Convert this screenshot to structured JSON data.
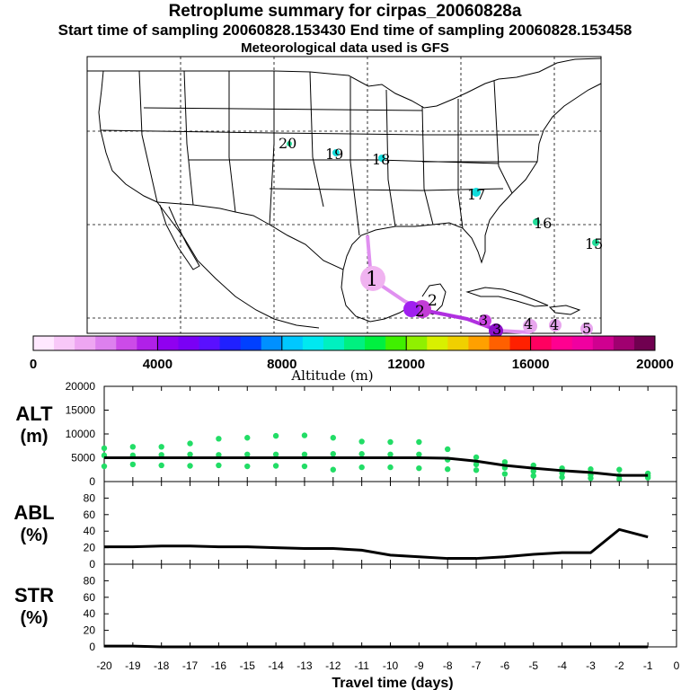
{
  "header": {
    "title": "Retroplume summary for cirpas_20060828a",
    "sampling_line": "Start time of sampling 20060828.153430     End time of sampling 20060828.153458",
    "met_line": "Meteorological data used is GFS"
  },
  "map": {
    "land_color": "#ffffff",
    "plume_points": [
      {
        "label": "1",
        "color": "#f0b3f0"
      },
      {
        "label": "2",
        "color": "#c23cd6"
      },
      {
        "label": "2",
        "color": "#a020f0"
      },
      {
        "label": "3",
        "color": "#c845e0"
      },
      {
        "label": "3",
        "color": "#8c10c8"
      },
      {
        "label": "4",
        "color": "#e8a6ee"
      },
      {
        "label": "4",
        "color": "#e8a6ee"
      },
      {
        "label": "5",
        "color": "#e8a6ee"
      },
      {
        "label": "15",
        "color": "#22dd99"
      },
      {
        "label": "16",
        "color": "#22dd99"
      },
      {
        "label": "17",
        "color": "#11dddd"
      },
      {
        "label": "18",
        "color": "#11dddd"
      },
      {
        "label": "19",
        "color": "#11dddd"
      },
      {
        "label": "20",
        "color": "#22dd99"
      }
    ]
  },
  "colorbar": {
    "title": "Altitude (m)",
    "ticks": [
      "0",
      "4000",
      "8000",
      "12000",
      "16000",
      "20000"
    ],
    "colors": [
      "#ffe8ff",
      "#f8c8f8",
      "#eea6f2",
      "#dd80ee",
      "#cc4be8",
      "#b020e8",
      "#9000f0",
      "#7a00f5",
      "#5a10ff",
      "#2020ff",
      "#0040ff",
      "#0090ff",
      "#00c8ff",
      "#00e8f0",
      "#00f0c0",
      "#00f080",
      "#00f040",
      "#40f000",
      "#90f000",
      "#d8f000",
      "#f0d000",
      "#ffa000",
      "#ff6000",
      "#ff2000",
      "#ff0060",
      "#ff0090",
      "#f000a0",
      "#d00090",
      "#a00070",
      "#700050"
    ]
  },
  "chart_data": [
    {
      "type": "scatter",
      "title": "ALT (m)",
      "ylabel": "ALT\n(m)",
      "ylim": [
        0,
        20000
      ],
      "yticks": [
        "20000",
        "15000",
        "10000",
        "5000",
        "0"
      ],
      "x": [
        -20,
        -19,
        -18,
        -17,
        -16,
        -15,
        -14,
        -13,
        -12,
        -11,
        -10,
        -9,
        -8,
        -7,
        -6,
        -5,
        -4,
        -3,
        -2,
        -1
      ],
      "series": [
        {
          "name": "median altitude",
          "style": "line",
          "values": [
            5000,
            5000,
            5000,
            5000,
            5000,
            5000,
            5000,
            5000,
            5000,
            5000,
            5000,
            5000,
            4900,
            4300,
            3400,
            2800,
            2300,
            1900,
            1300,
            1300
          ]
        },
        {
          "name": "altitude spread",
          "style": "dots",
          "color": "#22dd66",
          "points": [
            {
              "x": -20,
              "y": 7000
            },
            {
              "x": -20,
              "y": 5500
            },
            {
              "x": -20,
              "y": 3200
            },
            {
              "x": -19,
              "y": 7300
            },
            {
              "x": -19,
              "y": 5500
            },
            {
              "x": -19,
              "y": 3600
            },
            {
              "x": -18,
              "y": 7300
            },
            {
              "x": -18,
              "y": 5600
            },
            {
              "x": -18,
              "y": 3400
            },
            {
              "x": -17,
              "y": 8000
            },
            {
              "x": -17,
              "y": 5700
            },
            {
              "x": -17,
              "y": 3300
            },
            {
              "x": -16,
              "y": 9000
            },
            {
              "x": -16,
              "y": 5600
            },
            {
              "x": -16,
              "y": 3400
            },
            {
              "x": -15,
              "y": 9200
            },
            {
              "x": -15,
              "y": 5700
            },
            {
              "x": -15,
              "y": 3200
            },
            {
              "x": -14,
              "y": 9600
            },
            {
              "x": -14,
              "y": 5700
            },
            {
              "x": -14,
              "y": 3300
            },
            {
              "x": -13,
              "y": 9700
            },
            {
              "x": -13,
              "y": 5700
            },
            {
              "x": -13,
              "y": 3200
            },
            {
              "x": -12,
              "y": 9200
            },
            {
              "x": -12,
              "y": 5800
            },
            {
              "x": -12,
              "y": 2500
            },
            {
              "x": -11,
              "y": 8400
            },
            {
              "x": -11,
              "y": 5800
            },
            {
              "x": -11,
              "y": 3000
            },
            {
              "x": -10,
              "y": 8300
            },
            {
              "x": -10,
              "y": 5700
            },
            {
              "x": -10,
              "y": 3000
            },
            {
              "x": -9,
              "y": 8300
            },
            {
              "x": -9,
              "y": 5700
            },
            {
              "x": -9,
              "y": 2800
            },
            {
              "x": -8,
              "y": 6800
            },
            {
              "x": -8,
              "y": 4600
            },
            {
              "x": -8,
              "y": 2600
            },
            {
              "x": -7,
              "y": 5100
            },
            {
              "x": -7,
              "y": 3600
            },
            {
              "x": -7,
              "y": 2400
            },
            {
              "x": -6,
              "y": 4100
            },
            {
              "x": -6,
              "y": 2900
            },
            {
              "x": -6,
              "y": 1600
            },
            {
              "x": -5,
              "y": 3400
            },
            {
              "x": -5,
              "y": 2200
            },
            {
              "x": -5,
              "y": 1200
            },
            {
              "x": -4,
              "y": 2800
            },
            {
              "x": -4,
              "y": 1800
            },
            {
              "x": -4,
              "y": 900
            },
            {
              "x": -3,
              "y": 2600
            },
            {
              "x": -3,
              "y": 1400
            },
            {
              "x": -3,
              "y": 700
            },
            {
              "x": -2,
              "y": 2500
            },
            {
              "x": -2,
              "y": 1200
            },
            {
              "x": -2,
              "y": 500
            },
            {
              "x": -1,
              "y": 1700
            },
            {
              "x": -1,
              "y": 1200
            },
            {
              "x": -1,
              "y": 800
            }
          ]
        }
      ]
    },
    {
      "type": "line",
      "title": "ABL (%)",
      "ylabel": "ABL\n(%)",
      "ylim": [
        0,
        100
      ],
      "yticks": [
        "80",
        "60",
        "40",
        "20",
        "0"
      ],
      "x": [
        -20,
        -19,
        -18,
        -17,
        -16,
        -15,
        -14,
        -13,
        -12,
        -11,
        -10,
        -9,
        -8,
        -7,
        -6,
        -5,
        -4,
        -3,
        -2,
        -1
      ],
      "values": [
        21,
        21,
        22,
        22,
        21,
        21,
        20,
        19,
        19,
        17,
        11,
        9,
        7,
        7,
        9,
        12,
        14,
        14,
        42,
        33
      ]
    },
    {
      "type": "line",
      "title": "STR (%)",
      "ylabel": "STR\n(%)",
      "ylim": [
        0,
        100
      ],
      "yticks": [
        "80",
        "60",
        "40",
        "20",
        "0"
      ],
      "x": [
        -20,
        -19,
        -18,
        -17,
        -16,
        -15,
        -14,
        -13,
        -12,
        -11,
        -10,
        -9,
        -8,
        -7,
        -6,
        -5,
        -4,
        -3,
        -2,
        -1
      ],
      "values": [
        1,
        1,
        0,
        0,
        0,
        0,
        0,
        0,
        0,
        0,
        0,
        0,
        0,
        0,
        0,
        0,
        0,
        0,
        0,
        0
      ]
    }
  ],
  "x_axis": {
    "ticks": [
      "-20",
      "-19",
      "-18",
      "-17",
      "-16",
      "-15",
      "-14",
      "-13",
      "-12",
      "-11",
      "-10",
      "-9",
      "-8",
      "-7",
      "-6",
      "-5",
      "-4",
      "-3",
      "-2",
      "-1",
      "0"
    ],
    "label": "Travel time (days)"
  }
}
